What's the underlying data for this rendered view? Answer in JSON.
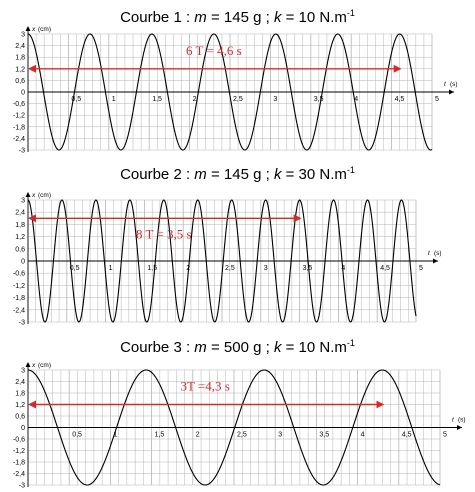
{
  "chart_data": [
    {
      "type": "line",
      "title_prefix": "Courbe 1 : ",
      "m_symbol": "m",
      "m_value": " = 145 g ; ",
      "k_symbol": "k",
      "k_value": " = 10 N.m",
      "k_exponent": "-1",
      "xlabel": "t",
      "xunit": "(s)",
      "ylabel": "x",
      "yunit": "(cm)",
      "xlim": [
        0,
        5
      ],
      "ylim": [
        -3,
        3
      ],
      "x_ticks": [
        "0,5",
        "1",
        "1,5",
        "2",
        "2,5",
        "3",
        "3,5",
        "4",
        "4,5",
        "5"
      ],
      "y_ticks": [
        "3",
        "2,4",
        "1,8",
        "1,2",
        "0,6",
        "0",
        "-0,6",
        "-1,2",
        "-1,8",
        "-2,4",
        "-3"
      ],
      "amplitude": 3,
      "period": 0.7667,
      "phase": "cosine",
      "annotation": {
        "text": "6 T = 4,6 s",
        "x_start": 0,
        "x_end": 4.6,
        "y": 1.2
      }
    },
    {
      "type": "line",
      "title_prefix": "Courbe 2 : ",
      "m_symbol": "m",
      "m_value": " = 145 g ; ",
      "k_symbol": "k",
      "k_value": " = 30 N.m",
      "k_exponent": "-1",
      "xlabel": "t",
      "xunit": "(s)",
      "ylabel": "x",
      "yunit": "(cm)",
      "xlim": [
        0,
        5
      ],
      "ylim": [
        -3,
        3
      ],
      "x_ticks": [
        "0,5",
        "1",
        "1,5",
        "2",
        "2,5",
        "3",
        "3,5",
        "4",
        "4,5",
        "5"
      ],
      "y_ticks": [
        "3",
        "2,4",
        "1,8",
        "1,2",
        "0,6",
        "0",
        "-0,6",
        "-1,2",
        "-1,8",
        "-2,4",
        "-3"
      ],
      "amplitude": 3,
      "period": 0.4375,
      "phase": "cosine",
      "annotation": {
        "text": "8 T = 3,5 s",
        "x_start": 0,
        "x_end": 3.5,
        "y": 2.1
      }
    },
    {
      "type": "line",
      "title_prefix": "Courbe 3 : ",
      "m_symbol": "m",
      "m_value": " = 500 g ; ",
      "k_symbol": "k",
      "k_value": " = 10 N.m",
      "k_exponent": "-1",
      "xlabel": "t",
      "xunit": "(s)",
      "ylabel": "x",
      "yunit": "(cm)",
      "xlim": [
        0,
        5
      ],
      "ylim": [
        -3,
        3
      ],
      "x_ticks": [
        "0,5",
        "1",
        "1,5",
        "2",
        "2,5",
        "3",
        "3,5",
        "4",
        "4,5",
        "5"
      ],
      "y_ticks": [
        "3",
        "2,4",
        "1,8",
        "1,2",
        "0,6",
        "0",
        "-0,6",
        "-1,2",
        "-1,8",
        "-2,4",
        "-3"
      ],
      "amplitude": 3,
      "period": 1.4333,
      "phase": "cosine",
      "annotation": {
        "text": "3T =4,3 s",
        "x_start": 0,
        "x_end": 4.3,
        "y": 1.2
      }
    }
  ],
  "colors": {
    "curve": "#000000",
    "grid": "#b4b4b4",
    "annotation": "#d42a2a"
  }
}
